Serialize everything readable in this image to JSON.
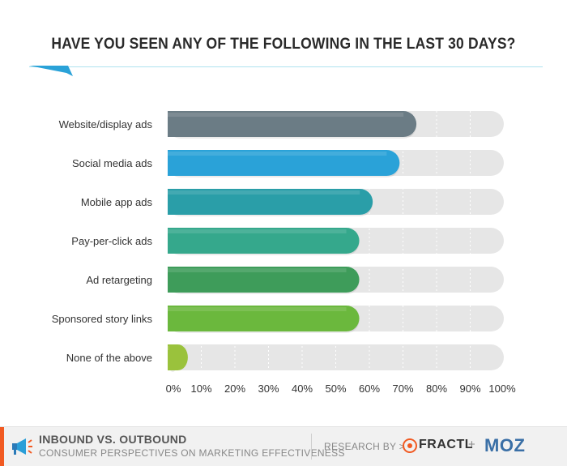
{
  "chart_data": {
    "type": "bar",
    "orientation": "horizontal",
    "title": "HAVE YOU SEEN ANY OF THE FOLLOWING IN THE LAST 30 DAYS?",
    "categories": [
      "Website/display ads",
      "Social media ads",
      "Mobile app ads",
      "Pay-per-click ads",
      "Ad retargeting",
      "Sponsored story links",
      "None of the above"
    ],
    "values": [
      74,
      69,
      61,
      57,
      57,
      57,
      3
    ],
    "colors": [
      "#6b7c85",
      "#2aa2d8",
      "#2a9ea8",
      "#35a88c",
      "#3e9c5a",
      "#6bb83d",
      "#9ac23c"
    ],
    "xlim": [
      0,
      100
    ],
    "xticks": [
      "0%",
      "10%",
      "20%",
      "30%",
      "40%",
      "50%",
      "60%",
      "70%",
      "80%",
      "90%",
      "100%"
    ],
    "grid": true,
    "track_color": "#e6e6e6"
  },
  "footer": {
    "title": "INBOUND VS. OUTBOUND",
    "subtitle": "CONSUMER PERSPECTIVES ON MARKETING EFFECTIVENESS",
    "research_by": "RESEARCH BY  >",
    "brand1": "FRACTL",
    "plus": "+",
    "brand2": "MOZ",
    "accent_color": "#f15a22",
    "megaphone_icon": "megaphone-icon",
    "fractl_icon": "fractl-logo-icon"
  }
}
